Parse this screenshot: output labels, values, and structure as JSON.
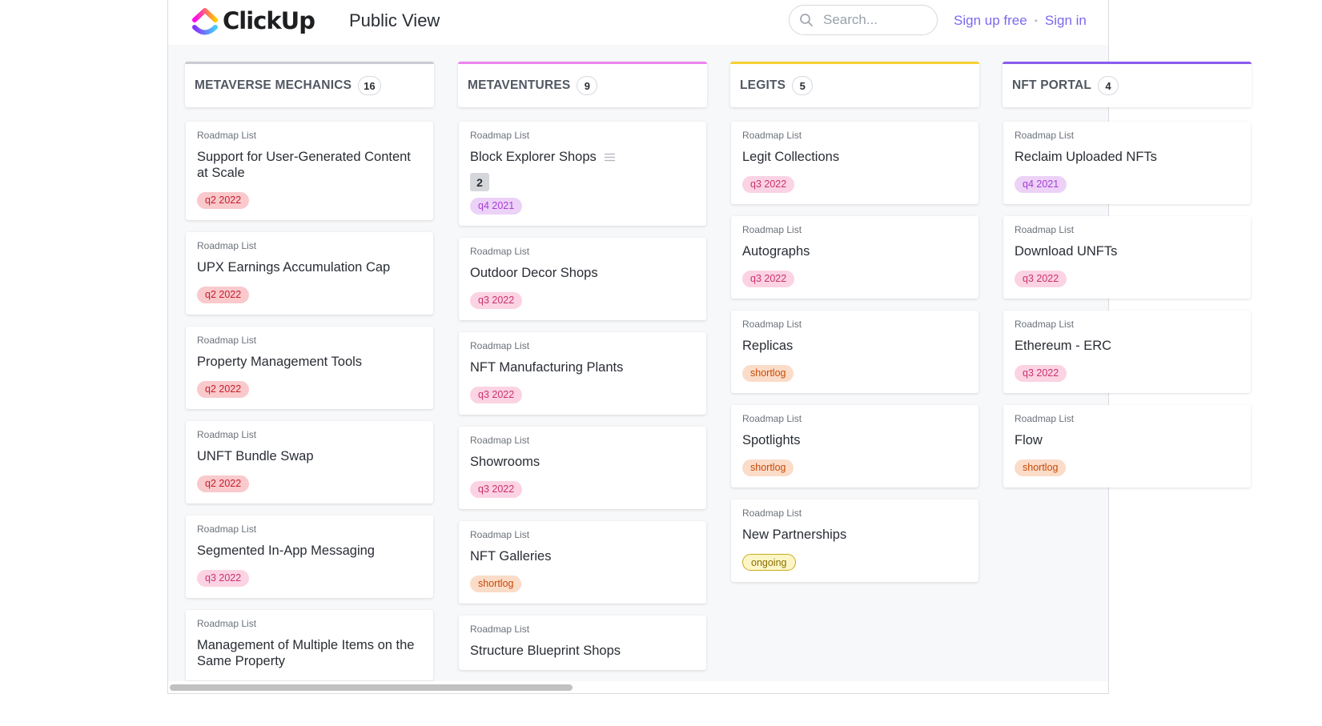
{
  "header": {
    "logo_text": "ClickUp",
    "view_title": "Public View",
    "search_placeholder": "Search...",
    "sign_up_label": "Sign up free",
    "separator": "•",
    "sign_in_label": "Sign in"
  },
  "colors": {
    "brand_purple": "#7b68ee",
    "tag_q2": {
      "bg": "#f9c9cc",
      "fg": "#c41f2c"
    },
    "tag_q3": {
      "bg": "#fbd3e3",
      "fg": "#c9336b"
    },
    "tag_q4": {
      "bg": "#ecd2f7",
      "fg": "#a83dd6"
    },
    "tag_shortlog": {
      "bg": "#fbdcc8",
      "fg": "#c84a06"
    },
    "tag_ongoing": {
      "bg": "#fcf6c7",
      "fg": "#8a6d00",
      "border": "#c8ab1c"
    }
  },
  "columns": [
    {
      "name": "METAVERSE MECHANICS",
      "count": "16",
      "accent": "#c9cdd3",
      "cards": [
        {
          "list": "Roadmap List",
          "title": "Support for User-Generated Content at Scale",
          "tag": "q2 2022",
          "tag_style": "q2"
        },
        {
          "list": "Roadmap List",
          "title": "UPX Earnings Accumulation Cap",
          "tag": "q2 2022",
          "tag_style": "q2"
        },
        {
          "list": "Roadmap List",
          "title": "Property Management Tools",
          "tag": "q2 2022",
          "tag_style": "q2"
        },
        {
          "list": "Roadmap List",
          "title": "UNFT Bundle Swap",
          "tag": "q2 2022",
          "tag_style": "q2"
        },
        {
          "list": "Roadmap List",
          "title": "Segmented In-App Messaging",
          "tag": "q3 2022",
          "tag_style": "q3"
        },
        {
          "list": "Roadmap List",
          "title": "Management of Multiple Items on the Same Property",
          "tag": "",
          "tag_style": ""
        }
      ]
    },
    {
      "name": "METAVENTURES",
      "count": "9",
      "accent": "#ee84ee",
      "cards": [
        {
          "list": "Roadmap List",
          "title": "Block Explorer Shops",
          "has_description": true,
          "subtasks": "2",
          "tag": "q4 2021",
          "tag_style": "q4"
        },
        {
          "list": "Roadmap List",
          "title": "Outdoor Decor Shops",
          "tag": "q3 2022",
          "tag_style": "q3"
        },
        {
          "list": "Roadmap List",
          "title": "NFT Manufacturing Plants",
          "tag": "q3 2022",
          "tag_style": "q3"
        },
        {
          "list": "Roadmap List",
          "title": "Showrooms",
          "tag": "q3 2022",
          "tag_style": "q3"
        },
        {
          "list": "Roadmap List",
          "title": "NFT Galleries",
          "tag": "shortlog",
          "tag_style": "shortlog"
        },
        {
          "list": "Roadmap List",
          "title": "Structure Blueprint Shops",
          "tag": "",
          "tag_style": ""
        }
      ]
    },
    {
      "name": "LEGITS",
      "count": "5",
      "accent": "#f5d132",
      "cards": [
        {
          "list": "Roadmap List",
          "title": "Legit Collections",
          "tag": "q3 2022",
          "tag_style": "q3"
        },
        {
          "list": "Roadmap List",
          "title": "Autographs",
          "tag": "q3 2022",
          "tag_style": "q3"
        },
        {
          "list": "Roadmap List",
          "title": "Replicas",
          "tag": "shortlog",
          "tag_style": "shortlog"
        },
        {
          "list": "Roadmap List",
          "title": "Spotlights",
          "tag": "shortlog",
          "tag_style": "shortlog"
        },
        {
          "list": "Roadmap List",
          "title": "New Partnerships",
          "tag": "ongoing",
          "tag_style": "ongoing"
        }
      ]
    },
    {
      "name": "NFT PORTAL",
      "count": "4",
      "accent": "#8a5cf0",
      "cards": [
        {
          "list": "Roadmap List",
          "title": "Reclaim Uploaded NFTs",
          "tag": "q4 2021",
          "tag_style": "q4"
        },
        {
          "list": "Roadmap List",
          "title": "Download UNFTs",
          "tag": "q3 2022",
          "tag_style": "q3"
        },
        {
          "list": "Roadmap List",
          "title": "Ethereum - ERC",
          "tag": "q3 2022",
          "tag_style": "q3"
        },
        {
          "list": "Roadmap List",
          "title": "Flow",
          "tag": "shortlog",
          "tag_style": "shortlog"
        }
      ]
    }
  ],
  "scrollbar": {
    "thumb_fraction": 0.43
  }
}
